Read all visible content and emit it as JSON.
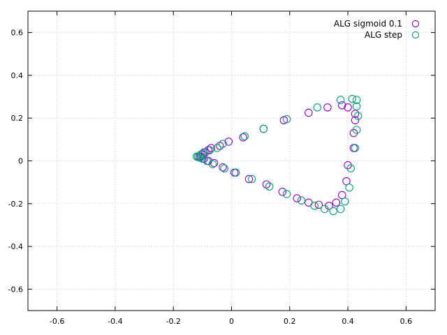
{
  "chart_data": {
    "type": "scatter",
    "xlim": [
      -0.7,
      0.7
    ],
    "ylim": [
      -0.7,
      0.7
    ],
    "xticks": [
      -0.6,
      -0.4,
      -0.2,
      0,
      0.2,
      0.4,
      0.6
    ],
    "yticks": [
      -0.6,
      -0.4,
      -0.2,
      0,
      0.2,
      0.4,
      0.6
    ],
    "xtick_labels": [
      "-0.6",
      "-0.4",
      "-0.2",
      "0",
      "0.2",
      "0.4",
      "0.6"
    ],
    "ytick_labels": [
      "-0.6",
      "-0.4",
      "-0.2",
      "0",
      "0.2",
      "0.4",
      "0.6"
    ],
    "grid": true,
    "legend_position": "top-right",
    "series": [
      {
        "name": "ALG sigmoid 0.1",
        "color": "#9400d3",
        "marker": "open-circle",
        "points": [
          [
            -0.11,
            0.02
          ],
          [
            -0.1,
            0.03
          ],
          [
            -0.09,
            0.04
          ],
          [
            -0.08,
            0.05
          ],
          [
            -0.07,
            0.06
          ],
          [
            -0.04,
            0.07
          ],
          [
            -0.01,
            0.09
          ],
          [
            0.04,
            0.11
          ],
          [
            0.11,
            0.15
          ],
          [
            0.18,
            0.19
          ],
          [
            0.265,
            0.225
          ],
          [
            0.33,
            0.25
          ],
          [
            0.38,
            0.26
          ],
          [
            0.4,
            0.25
          ],
          [
            0.425,
            0.22
          ],
          [
            0.425,
            0.19
          ],
          [
            0.42,
            0.13
          ],
          [
            0.42,
            0.06
          ],
          [
            0.4,
            -0.02
          ],
          [
            0.395,
            -0.095
          ],
          [
            0.38,
            -0.16
          ],
          [
            0.36,
            -0.195
          ],
          [
            0.335,
            -0.21
          ],
          [
            0.3,
            -0.205
          ],
          [
            0.265,
            -0.195
          ],
          [
            0.225,
            -0.175
          ],
          [
            0.175,
            -0.145
          ],
          [
            0.12,
            -0.11
          ],
          [
            0.06,
            -0.085
          ],
          [
            0.01,
            -0.055
          ],
          [
            -0.03,
            -0.03
          ],
          [
            -0.06,
            -0.01
          ],
          [
            -0.08,
            0.0
          ],
          [
            -0.095,
            0.01
          ],
          [
            -0.105,
            0.02
          ]
        ]
      },
      {
        "name": "ALG step",
        "color": "#009e73",
        "marker": "open-circle",
        "points": [
          [
            -0.115,
            0.02
          ],
          [
            -0.105,
            0.03
          ],
          [
            -0.095,
            0.04
          ],
          [
            -0.075,
            0.05
          ],
          [
            -0.05,
            0.06
          ],
          [
            -0.03,
            0.08
          ],
          [
            0.045,
            0.115
          ],
          [
            0.11,
            0.15
          ],
          [
            0.19,
            0.195
          ],
          [
            0.295,
            0.25
          ],
          [
            0.375,
            0.285
          ],
          [
            0.415,
            0.29
          ],
          [
            0.43,
            0.285
          ],
          [
            0.43,
            0.255
          ],
          [
            0.435,
            0.21
          ],
          [
            0.43,
            0.145
          ],
          [
            0.425,
            0.06
          ],
          [
            0.41,
            -0.035
          ],
          [
            0.405,
            -0.125
          ],
          [
            0.39,
            -0.19
          ],
          [
            0.375,
            -0.225
          ],
          [
            0.35,
            -0.235
          ],
          [
            0.32,
            -0.225
          ],
          [
            0.285,
            -0.21
          ],
          [
            0.24,
            -0.185
          ],
          [
            0.19,
            -0.155
          ],
          [
            0.13,
            -0.12
          ],
          [
            0.07,
            -0.085
          ],
          [
            0.015,
            -0.055
          ],
          [
            -0.025,
            -0.035
          ],
          [
            -0.065,
            -0.015
          ],
          [
            -0.085,
            0.0
          ],
          [
            -0.1,
            0.01
          ],
          [
            -0.11,
            0.015
          ],
          [
            -0.12,
            0.02
          ]
        ]
      }
    ]
  }
}
